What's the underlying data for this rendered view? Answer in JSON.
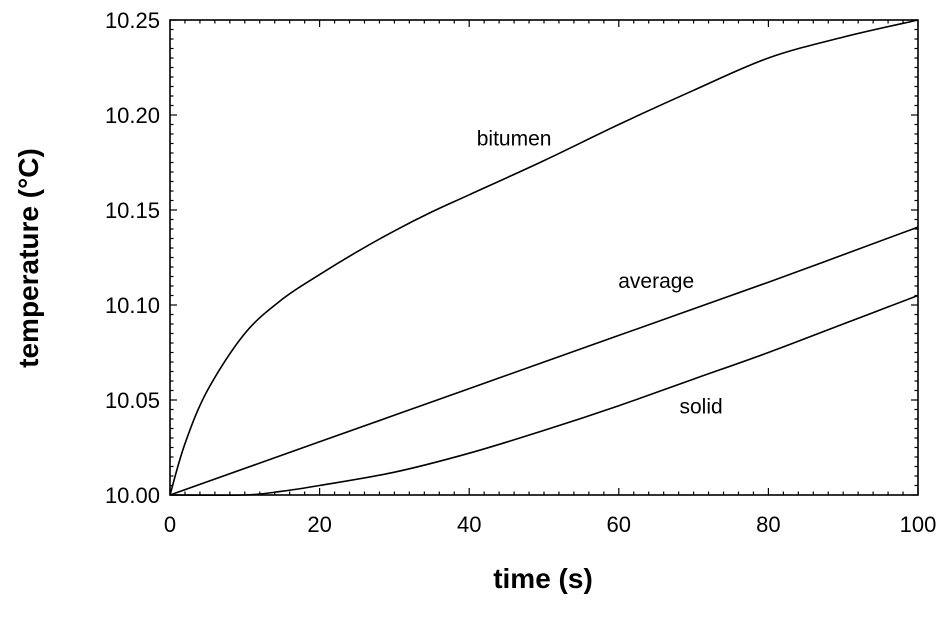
{
  "chart_data": {
    "type": "line",
    "title": "",
    "xlabel": "time (s)",
    "ylabel": "temperature (°C)",
    "xlim": [
      0,
      100
    ],
    "ylim": [
      10.0,
      10.25
    ],
    "x_ticks": [
      0,
      20,
      40,
      60,
      80,
      100
    ],
    "x_tick_labels": [
      "0",
      "20",
      "40",
      "60",
      "80",
      "100"
    ],
    "y_ticks": [
      10.0,
      10.05,
      10.1,
      10.15,
      10.2,
      10.25
    ],
    "y_tick_labels": [
      "10.00",
      "10.05",
      "10.10",
      "10.15",
      "10.20",
      "10.25"
    ],
    "grid": false,
    "legend": "none",
    "series": [
      {
        "name": "bitumen",
        "x": [
          0,
          2,
          5,
          10,
          15,
          20,
          25,
          30,
          35,
          40,
          50,
          60,
          70,
          80,
          90,
          100
        ],
        "values": [
          10.0,
          10.027,
          10.055,
          10.085,
          10.103,
          10.116,
          10.128,
          10.139,
          10.149,
          10.158,
          10.176,
          10.195,
          10.213,
          10.23,
          10.241,
          10.25
        ]
      },
      {
        "name": "average",
        "x": [
          0,
          20,
          40,
          60,
          80,
          100
        ],
        "values": [
          10.0,
          10.028,
          10.056,
          10.084,
          10.112,
          10.141
        ]
      },
      {
        "name": "solid",
        "x": [
          0,
          10,
          15,
          20,
          30,
          40,
          50,
          60,
          70,
          80,
          90,
          100
        ],
        "values": [
          10.0,
          10.0,
          10.002,
          10.005,
          10.012,
          10.022,
          10.034,
          10.047,
          10.061,
          10.075,
          10.09,
          10.105
        ]
      }
    ],
    "annotations": [
      {
        "text": "bitumen",
        "x": 46,
        "y": 10.184
      },
      {
        "text": "average",
        "x": 65,
        "y": 10.109
      },
      {
        "text": "solid",
        "x": 71,
        "y": 10.043
      }
    ]
  }
}
